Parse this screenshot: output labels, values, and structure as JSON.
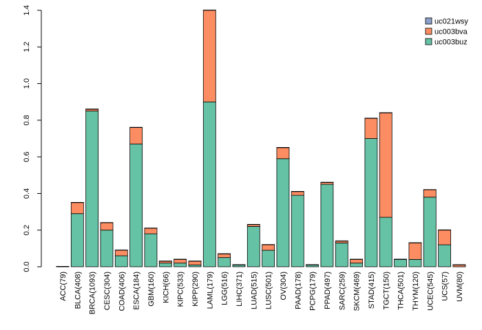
{
  "chart_data": {
    "type": "bar",
    "stacked": true,
    "title": "",
    "xlabel": "",
    "ylabel": "",
    "ylim": [
      0,
      1.4
    ],
    "yticks": [
      "0.0",
      "0.2",
      "0.4",
      "0.6",
      "0.8",
      "1.0",
      "1.2",
      "1.4"
    ],
    "categories": [
      "ACC(79)",
      "BLCA(408)",
      "BRCA(1093)",
      "CESC(304)",
      "COAD(406)",
      "ESCA(184)",
      "GBM(160)",
      "KICH(66)",
      "KIPC(533)",
      "KIPP(290)",
      "LAML(179)",
      "LGG(516)",
      "LIHC(371)",
      "LUAD(515)",
      "LUSC(501)",
      "OV(304)",
      "PAAD(178)",
      "PCPG(179)",
      "PPAD(497)",
      "SARC(259)",
      "SKCM(469)",
      "STAD(415)",
      "TGCT(150)",
      "THCA(501)",
      "THYM(120)",
      "UCEC(545)",
      "UCS(57)",
      "UVM(80)"
    ],
    "series": [
      {
        "name": "uc003buz",
        "color": "#66c2a5",
        "values": [
          0,
          0.29,
          0.85,
          0.2,
          0.06,
          0.67,
          0.18,
          0.02,
          0.02,
          0.01,
          0.9,
          0.05,
          0.01,
          0.22,
          0.09,
          0.59,
          0.39,
          0.01,
          0.45,
          0.13,
          0.02,
          0.7,
          0.27,
          0.04,
          0.04,
          0.38,
          0.12,
          0
        ]
      },
      {
        "name": "uc003bva",
        "color": "#fc8d62",
        "values": [
          0,
          0.06,
          0.01,
          0.04,
          0.03,
          0.09,
          0.03,
          0.01,
          0.02,
          0.02,
          0.5,
          0.02,
          0,
          0.01,
          0.03,
          0.06,
          0.02,
          0,
          0.01,
          0.01,
          0.02,
          0.11,
          0.57,
          0,
          0.09,
          0.04,
          0.08,
          0.01
        ]
      },
      {
        "name": "uc021wsy",
        "color": "#8da0cb",
        "values": [
          0,
          0,
          0,
          0,
          0,
          0,
          0,
          0,
          0,
          0,
          0,
          0,
          0,
          0,
          0,
          0,
          0,
          0,
          0,
          0,
          0,
          0,
          0,
          0,
          0,
          0,
          0,
          0
        ]
      }
    ],
    "legend": {
      "position": "top-right",
      "order": [
        "uc021wsy",
        "uc003bva",
        "uc003buz"
      ]
    },
    "grid": false
  }
}
